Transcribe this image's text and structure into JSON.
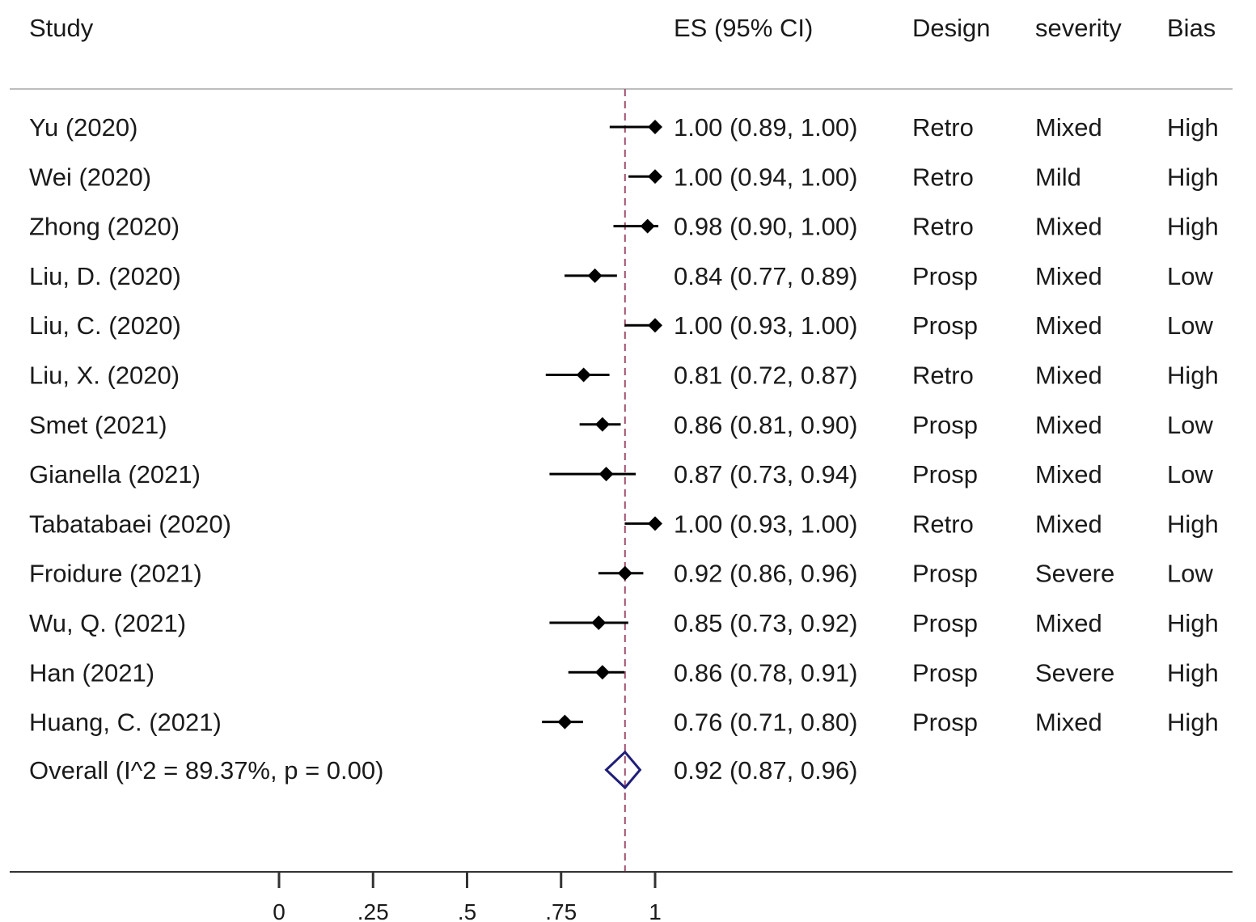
{
  "chart_data": {
    "type": "forest",
    "headers": {
      "study": "Study",
      "es": "ES (95% CI)",
      "design": "Design",
      "severity": "severity",
      "bias": "Bias"
    },
    "studies": [
      {
        "label": "Yu  (2020)",
        "es": 1.0,
        "lo": 0.89,
        "hi": 1.0,
        "es_text": "1.00 (0.89, 1.00)",
        "design": "Retro",
        "severity": "Mixed",
        "bias": "High"
      },
      {
        "label": "Wei  (2020)",
        "es": 1.0,
        "lo": 0.94,
        "hi": 1.0,
        "es_text": "1.00 (0.94, 1.00)",
        "design": "Retro",
        "severity": "Mild",
        "bias": "High"
      },
      {
        "label": "Zhong  (2020)",
        "es": 0.98,
        "lo": 0.9,
        "hi": 1.0,
        "es_text": "0.98 (0.90, 1.00)",
        "design": "Retro",
        "severity": "Mixed",
        "bias": "High"
      },
      {
        "label": "Liu, D.  (2020)",
        "es": 0.84,
        "lo": 0.77,
        "hi": 0.89,
        "es_text": "0.84 (0.77, 0.89)",
        "design": "Prosp",
        "severity": "Mixed",
        "bias": "Low"
      },
      {
        "label": "Liu, C. (2020)",
        "es": 1.0,
        "lo": 0.93,
        "hi": 1.0,
        "es_text": "1.00 (0.93, 1.00)",
        "design": "Prosp",
        "severity": "Mixed",
        "bias": "Low"
      },
      {
        "label": "Liu, X. (2020)",
        "es": 0.81,
        "lo": 0.72,
        "hi": 0.87,
        "es_text": "0.81 (0.72, 0.87)",
        "design": "Retro",
        "severity": "Mixed",
        "bias": "High"
      },
      {
        "label": "Smet  (2021)",
        "es": 0.86,
        "lo": 0.81,
        "hi": 0.9,
        "es_text": "0.86 (0.81, 0.90)",
        "design": "Prosp",
        "severity": "Mixed",
        "bias": "Low"
      },
      {
        "label": "Gianella  (2021)",
        "es": 0.87,
        "lo": 0.73,
        "hi": 0.94,
        "es_text": "0.87 (0.73, 0.94)",
        "design": "Prosp",
        "severity": "Mixed",
        "bias": "Low"
      },
      {
        "label": "Tabatabaei  (2020)",
        "es": 1.0,
        "lo": 0.93,
        "hi": 1.0,
        "es_text": "1.00 (0.93, 1.00)",
        "design": "Retro",
        "severity": "Mixed",
        "bias": "High"
      },
      {
        "label": "Froidure (2021)",
        "es": 0.92,
        "lo": 0.86,
        "hi": 0.96,
        "es_text": "0.92 (0.86, 0.96)",
        "design": "Prosp",
        "severity": "Severe",
        "bias": "Low"
      },
      {
        "label": "Wu, Q. (2021)",
        "es": 0.85,
        "lo": 0.73,
        "hi": 0.92,
        "es_text": "0.85 (0.73, 0.92)",
        "design": "Prosp",
        "severity": "Mixed",
        "bias": "High"
      },
      {
        "label": "Han  (2021)",
        "es": 0.86,
        "lo": 0.78,
        "hi": 0.91,
        "es_text": "0.86 (0.78, 0.91)",
        "design": "Prosp",
        "severity": "Severe",
        "bias": "High"
      },
      {
        "label": "Huang, C.  (2021)",
        "es": 0.76,
        "lo": 0.71,
        "hi": 0.8,
        "es_text": "0.76 (0.71, 0.80)",
        "design": "Prosp",
        "severity": "Mixed",
        "bias": "High"
      }
    ],
    "overall": {
      "label": "Overall  (I^2 = 89.37%, p = 0.00)",
      "es": 0.92,
      "lo": 0.87,
      "hi": 0.96,
      "es_text": "0.92 (0.87, 0.96)"
    },
    "x_ticks": [
      0,
      0.25,
      0.5,
      0.75,
      1
    ],
    "x_tick_labels": [
      "0",
      ".25",
      ".5",
      ".75",
      "1"
    ],
    "reference_line": 0.92,
    "colors": {
      "text": "#1a1a1a",
      "marker": "#000000",
      "diamond": "#1f1f7a",
      "refline": "#a0506e",
      "rule": "#bdbdbd"
    }
  }
}
